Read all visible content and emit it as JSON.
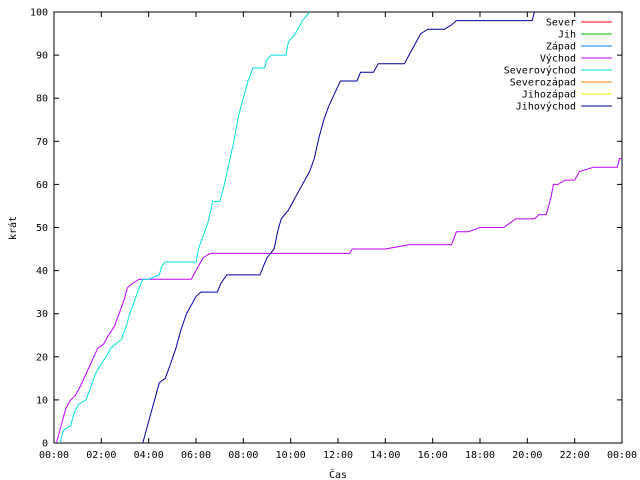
{
  "chart_data": {
    "type": "line",
    "xlabel": "Čas",
    "ylabel": "krát",
    "xlim": [
      0,
      24
    ],
    "ylim": [
      0,
      100
    ],
    "x_ticks": [
      {
        "value": 0,
        "label": "00:00"
      },
      {
        "value": 2,
        "label": "02:00"
      },
      {
        "value": 4,
        "label": "04:00"
      },
      {
        "value": 6,
        "label": "06:00"
      },
      {
        "value": 8,
        "label": "08:00"
      },
      {
        "value": 10,
        "label": "10:00"
      },
      {
        "value": 12,
        "label": "12:00"
      },
      {
        "value": 14,
        "label": "14:00"
      },
      {
        "value": 16,
        "label": "16:00"
      },
      {
        "value": 18,
        "label": "18:00"
      },
      {
        "value": 20,
        "label": "20:00"
      },
      {
        "value": 22,
        "label": "22:00"
      },
      {
        "value": 24,
        "label": "00:00"
      }
    ],
    "y_ticks": [
      0,
      10,
      20,
      30,
      40,
      50,
      60,
      70,
      80,
      90,
      100
    ],
    "grid": false,
    "legend_position": "top-right",
    "series": [
      {
        "name": "Sever",
        "color": "#ff0000",
        "points": []
      },
      {
        "name": "Jih",
        "color": "#00c000",
        "points": []
      },
      {
        "name": "Západ",
        "color": "#0080ff",
        "points": []
      },
      {
        "name": "Východ",
        "color": "#c000ff",
        "points": [
          [
            0.1,
            0
          ],
          [
            0.25,
            3
          ],
          [
            0.5,
            8
          ],
          [
            0.7,
            10
          ],
          [
            0.9,
            11
          ],
          [
            1.1,
            13
          ],
          [
            1.35,
            16
          ],
          [
            1.6,
            19
          ],
          [
            1.85,
            22
          ],
          [
            2.1,
            23
          ],
          [
            2.3,
            25
          ],
          [
            2.55,
            27
          ],
          [
            2.75,
            30
          ],
          [
            2.95,
            33
          ],
          [
            3.1,
            36
          ],
          [
            3.3,
            37
          ],
          [
            3.6,
            38
          ],
          [
            4.5,
            38
          ],
          [
            5.8,
            38
          ],
          [
            6.0,
            40
          ],
          [
            6.3,
            43
          ],
          [
            6.6,
            44
          ],
          [
            8.0,
            44
          ],
          [
            10.0,
            44
          ],
          [
            12.0,
            44
          ],
          [
            12.5,
            44
          ],
          [
            12.6,
            45
          ],
          [
            14.0,
            45
          ],
          [
            15.0,
            46
          ],
          [
            16.8,
            46
          ],
          [
            17.0,
            49
          ],
          [
            17.5,
            49
          ],
          [
            18.0,
            50
          ],
          [
            19.0,
            50
          ],
          [
            19.5,
            52
          ],
          [
            20.3,
            52
          ],
          [
            20.5,
            53
          ],
          [
            20.8,
            53
          ],
          [
            21.0,
            57
          ],
          [
            21.1,
            60
          ],
          [
            21.3,
            60
          ],
          [
            21.6,
            61
          ],
          [
            22.0,
            61
          ],
          [
            22.2,
            63
          ],
          [
            22.8,
            64
          ],
          [
            23.8,
            64
          ],
          [
            23.9,
            66
          ],
          [
            24.0,
            66
          ]
        ]
      },
      {
        "name": "Severovýchod",
        "color": "#00e0e0",
        "points": [
          [
            0.25,
            0
          ],
          [
            0.4,
            3
          ],
          [
            0.7,
            4
          ],
          [
            0.85,
            7
          ],
          [
            1.05,
            9
          ],
          [
            1.35,
            10
          ],
          [
            1.55,
            13
          ],
          [
            1.75,
            16
          ],
          [
            1.95,
            18
          ],
          [
            2.2,
            20
          ],
          [
            2.4,
            22
          ],
          [
            2.6,
            23
          ],
          [
            2.85,
            24
          ],
          [
            3.05,
            27
          ],
          [
            3.2,
            30
          ],
          [
            3.4,
            33
          ],
          [
            3.6,
            36
          ],
          [
            3.75,
            38
          ],
          [
            4.0,
            38
          ],
          [
            4.45,
            39
          ],
          [
            4.55,
            41
          ],
          [
            4.7,
            42
          ],
          [
            5.5,
            42
          ],
          [
            6.0,
            42
          ],
          [
            6.1,
            45
          ],
          [
            6.3,
            48
          ],
          [
            6.5,
            51
          ],
          [
            6.7,
            56
          ],
          [
            7.0,
            56
          ],
          [
            7.2,
            60
          ],
          [
            7.4,
            65
          ],
          [
            7.6,
            70
          ],
          [
            7.8,
            76
          ],
          [
            8.0,
            80
          ],
          [
            8.2,
            84
          ],
          [
            8.4,
            87
          ],
          [
            8.9,
            87
          ],
          [
            9.0,
            89
          ],
          [
            9.2,
            90
          ],
          [
            9.8,
            90
          ],
          [
            9.9,
            93
          ],
          [
            10.2,
            95
          ],
          [
            10.5,
            98
          ],
          [
            10.8,
            100
          ]
        ]
      },
      {
        "name": "Severozápad",
        "color": "#ff8000",
        "points": []
      },
      {
        "name": "Jihozápad",
        "color": "#ffff00",
        "points": []
      },
      {
        "name": "Jihovýchod",
        "color": "#0000a0",
        "points": [
          [
            3.75,
            0
          ],
          [
            3.9,
            3
          ],
          [
            4.1,
            7
          ],
          [
            4.3,
            11
          ],
          [
            4.45,
            14
          ],
          [
            4.7,
            15
          ],
          [
            4.9,
            18
          ],
          [
            5.15,
            22
          ],
          [
            5.35,
            26
          ],
          [
            5.6,
            30
          ],
          [
            5.8,
            32
          ],
          [
            6.0,
            34
          ],
          [
            6.2,
            35
          ],
          [
            6.9,
            35
          ],
          [
            7.05,
            37
          ],
          [
            7.3,
            39
          ],
          [
            8.7,
            39
          ],
          [
            8.85,
            41
          ],
          [
            9.0,
            43
          ],
          [
            9.3,
            45
          ],
          [
            9.45,
            49
          ],
          [
            9.6,
            52
          ],
          [
            9.9,
            54
          ],
          [
            10.2,
            57
          ],
          [
            10.5,
            60
          ],
          [
            10.8,
            63
          ],
          [
            11.0,
            66
          ],
          [
            11.2,
            71
          ],
          [
            11.4,
            75
          ],
          [
            11.6,
            78
          ],
          [
            11.85,
            81
          ],
          [
            12.1,
            84
          ],
          [
            12.8,
            84
          ],
          [
            12.95,
            86
          ],
          [
            13.5,
            86
          ],
          [
            13.7,
            88
          ],
          [
            14.8,
            88
          ],
          [
            15.0,
            90
          ],
          [
            15.2,
            92
          ],
          [
            15.5,
            95
          ],
          [
            15.8,
            96
          ],
          [
            16.5,
            96
          ],
          [
            16.8,
            97
          ],
          [
            17.0,
            98
          ],
          [
            19.8,
            98
          ],
          [
            20.2,
            98
          ],
          [
            20.3,
            100
          ]
        ]
      }
    ]
  }
}
